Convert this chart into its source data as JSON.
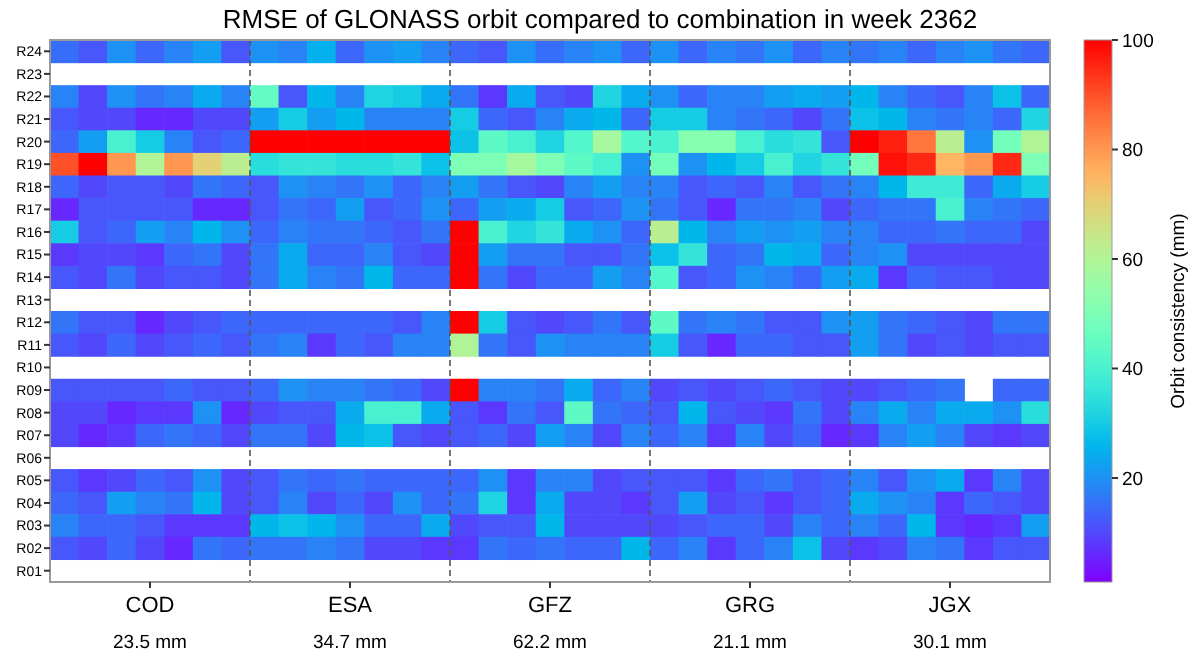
{
  "chart_data": {
    "type": "heatmap",
    "title": "RMSE of GLONASS orbit compared to combination in week 2362",
    "clabel": "Orbit consistency (mm)",
    "categories": [
      null,
      null,
      null,
      "COD",
      null,
      null,
      null,
      null,
      null,
      null,
      "ESA",
      null,
      null,
      null,
      null,
      null,
      null,
      "GFZ",
      null,
      null,
      null,
      null,
      null,
      null,
      "GRG",
      null,
      null,
      null,
      null,
      null,
      null,
      "JGX",
      null,
      null,
      null
    ],
    "y_categories": [
      "R24",
      "R23",
      "R22",
      "R21",
      "R20",
      "R19",
      "R18",
      "R17",
      "R16",
      "R15",
      "R14",
      "R13",
      "R12",
      "R11",
      "R10",
      "R09",
      "R08",
      "R07",
      "R06",
      "R05",
      "R04",
      "R03",
      "R02",
      "R01"
    ],
    "cells": [
      [
        15,
        12,
        20,
        14,
        18,
        22,
        12,
        20,
        18,
        25,
        14,
        20,
        22,
        18,
        14,
        12,
        20,
        15,
        18,
        20,
        14,
        20,
        14,
        18,
        16,
        20,
        14,
        18,
        16,
        18,
        14,
        18,
        20,
        16,
        14
      ],
      [
        null,
        null,
        null,
        null,
        null,
        null,
        null,
        null,
        null,
        null,
        null,
        null,
        null,
        null,
        null,
        null,
        null,
        null,
        null,
        null,
        null,
        null,
        null,
        null,
        null,
        null,
        null,
        null,
        null,
        null,
        null,
        null,
        null,
        null,
        null
      ],
      [
        18,
        10,
        20,
        16,
        18,
        24,
        18,
        45,
        12,
        26,
        18,
        32,
        30,
        24,
        16,
        8,
        24,
        12,
        10,
        32,
        24,
        20,
        14,
        18,
        18,
        22,
        24,
        22,
        26,
        18,
        14,
        12,
        18,
        28,
        14
      ],
      [
        12,
        10,
        10,
        6,
        6,
        10,
        10,
        22,
        30,
        22,
        26,
        18,
        18,
        18,
        30,
        14,
        12,
        18,
        24,
        26,
        14,
        30,
        30,
        18,
        16,
        14,
        10,
        16,
        28,
        26,
        18,
        16,
        18,
        14,
        32
      ],
      [
        14,
        22,
        40,
        30,
        18,
        12,
        14,
        100,
        100,
        100,
        100,
        100,
        100,
        100,
        28,
        44,
        40,
        32,
        42,
        58,
        42,
        40,
        52,
        52,
        40,
        34,
        36,
        12,
        100,
        96,
        85,
        62,
        20,
        48,
        60
      ],
      [
        90,
        100,
        80,
        60,
        80,
        70,
        62,
        34,
        36,
        36,
        34,
        34,
        36,
        28,
        50,
        50,
        58,
        50,
        44,
        40,
        20,
        48,
        20,
        26,
        30,
        40,
        32,
        36,
        48,
        98,
        95,
        75,
        80,
        95,
        50
      ],
      [
        14,
        10,
        12,
        12,
        10,
        16,
        14,
        12,
        20,
        18,
        16,
        20,
        14,
        18,
        22,
        16,
        12,
        10,
        18,
        22,
        18,
        18,
        12,
        14,
        12,
        18,
        12,
        16,
        18,
        26,
        38,
        38,
        14,
        24,
        30
      ],
      [
        6,
        12,
        12,
        12,
        12,
        6,
        6,
        12,
        16,
        14,
        22,
        12,
        14,
        20,
        14,
        22,
        24,
        30,
        12,
        14,
        20,
        16,
        12,
        6,
        16,
        16,
        18,
        10,
        14,
        16,
        16,
        40,
        18,
        16,
        14
      ],
      [
        30,
        12,
        14,
        22,
        18,
        26,
        20,
        14,
        18,
        16,
        16,
        14,
        12,
        16,
        100,
        40,
        32,
        36,
        24,
        20,
        14,
        62,
        26,
        18,
        22,
        20,
        22,
        18,
        18,
        14,
        14,
        16,
        14,
        14,
        10
      ],
      [
        8,
        10,
        10,
        8,
        14,
        16,
        10,
        16,
        24,
        14,
        14,
        18,
        12,
        10,
        100,
        22,
        16,
        16,
        12,
        12,
        16,
        28,
        36,
        14,
        16,
        26,
        24,
        14,
        18,
        20,
        10,
        10,
        10,
        10,
        10
      ],
      [
        12,
        10,
        16,
        10,
        12,
        12,
        10,
        16,
        24,
        18,
        16,
        26,
        14,
        14,
        100,
        16,
        10,
        14,
        14,
        22,
        18,
        42,
        12,
        14,
        20,
        18,
        14,
        22,
        24,
        8,
        14,
        12,
        12,
        10,
        10
      ],
      [
        null,
        null,
        null,
        null,
        null,
        null,
        null,
        null,
        null,
        null,
        null,
        null,
        null,
        null,
        null,
        null,
        null,
        null,
        null,
        null,
        null,
        null,
        null,
        null,
        null,
        null,
        null,
        null,
        null,
        null,
        null,
        null,
        null,
        null,
        null
      ],
      [
        16,
        12,
        12,
        6,
        10,
        12,
        14,
        14,
        14,
        14,
        14,
        14,
        12,
        18,
        100,
        30,
        12,
        10,
        12,
        16,
        12,
        44,
        16,
        18,
        16,
        12,
        12,
        20,
        22,
        16,
        14,
        12,
        10,
        16,
        16
      ],
      [
        12,
        10,
        14,
        10,
        12,
        14,
        12,
        16,
        18,
        8,
        14,
        12,
        18,
        18,
        60,
        16,
        12,
        20,
        18,
        18,
        18,
        30,
        12,
        6,
        14,
        14,
        12,
        12,
        22,
        16,
        10,
        12,
        10,
        12,
        12
      ],
      [
        null,
        null,
        null,
        null,
        null,
        null,
        null,
        null,
        null,
        null,
        null,
        null,
        null,
        null,
        null,
        null,
        null,
        null,
        null,
        null,
        null,
        null,
        null,
        null,
        null,
        null,
        null,
        null,
        null,
        null,
        null,
        null,
        null,
        null,
        null
      ],
      [
        12,
        12,
        12,
        12,
        14,
        12,
        12,
        14,
        20,
        18,
        18,
        16,
        14,
        10,
        100,
        18,
        18,
        16,
        24,
        14,
        18,
        10,
        12,
        10,
        12,
        14,
        12,
        10,
        10,
        12,
        14,
        16,
        null,
        14,
        14
      ],
      [
        10,
        10,
        6,
        8,
        8,
        20,
        6,
        10,
        12,
        12,
        24,
        40,
        40,
        24,
        12,
        8,
        16,
        12,
        44,
        16,
        14,
        12,
        26,
        12,
        10,
        8,
        16,
        10,
        18,
        24,
        18,
        24,
        24,
        20,
        34
      ],
      [
        10,
        6,
        8,
        14,
        16,
        14,
        10,
        16,
        16,
        10,
        26,
        28,
        12,
        10,
        12,
        14,
        10,
        22,
        18,
        10,
        18,
        14,
        18,
        8,
        18,
        10,
        14,
        6,
        8,
        18,
        22,
        18,
        10,
        8,
        10
      ],
      [
        null,
        null,
        null,
        null,
        null,
        null,
        null,
        null,
        null,
        null,
        null,
        null,
        null,
        null,
        null,
        null,
        null,
        null,
        null,
        null,
        null,
        null,
        null,
        null,
        null,
        null,
        null,
        null,
        null,
        null,
        null,
        null,
        null,
        null,
        null
      ],
      [
        12,
        8,
        10,
        14,
        12,
        20,
        10,
        12,
        16,
        14,
        16,
        14,
        14,
        14,
        14,
        20,
        8,
        18,
        18,
        10,
        12,
        12,
        12,
        8,
        14,
        16,
        12,
        14,
        18,
        12,
        20,
        24,
        8,
        18,
        10
      ],
      [
        14,
        12,
        22,
        18,
        16,
        26,
        10,
        12,
        18,
        10,
        14,
        10,
        20,
        14,
        16,
        32,
        8,
        24,
        10,
        10,
        8,
        12,
        22,
        10,
        12,
        8,
        12,
        14,
        24,
        20,
        18,
        8,
        14,
        12,
        10
      ],
      [
        18,
        14,
        14,
        12,
        8,
        8,
        8,
        26,
        28,
        26,
        20,
        14,
        14,
        24,
        10,
        12,
        12,
        26,
        10,
        10,
        10,
        10,
        12,
        14,
        14,
        10,
        18,
        14,
        18,
        14,
        26,
        8,
        6,
        8,
        22
      ],
      [
        12,
        10,
        14,
        10,
        6,
        16,
        14,
        16,
        16,
        18,
        16,
        10,
        10,
        8,
        8,
        16,
        14,
        16,
        14,
        14,
        26,
        14,
        18,
        8,
        14,
        18,
        28,
        10,
        8,
        10,
        18,
        16,
        8,
        12,
        12
      ],
      [
        null,
        null,
        null,
        null,
        null,
        null,
        null,
        null,
        null,
        null,
        null,
        null,
        null,
        null,
        null,
        null,
        null,
        null,
        null,
        null,
        null,
        null,
        null,
        null,
        null,
        null,
        null,
        null,
        null,
        null,
        null,
        null,
        null,
        null,
        null
      ]
    ],
    "clim": [
      1,
      100
    ],
    "cticks": [
      20,
      40,
      60,
      80,
      100
    ],
    "annotations": [
      "23.5 mm",
      "34.7 mm",
      "62.2 mm",
      "21.1 mm",
      "30.1 mm"
    ]
  }
}
